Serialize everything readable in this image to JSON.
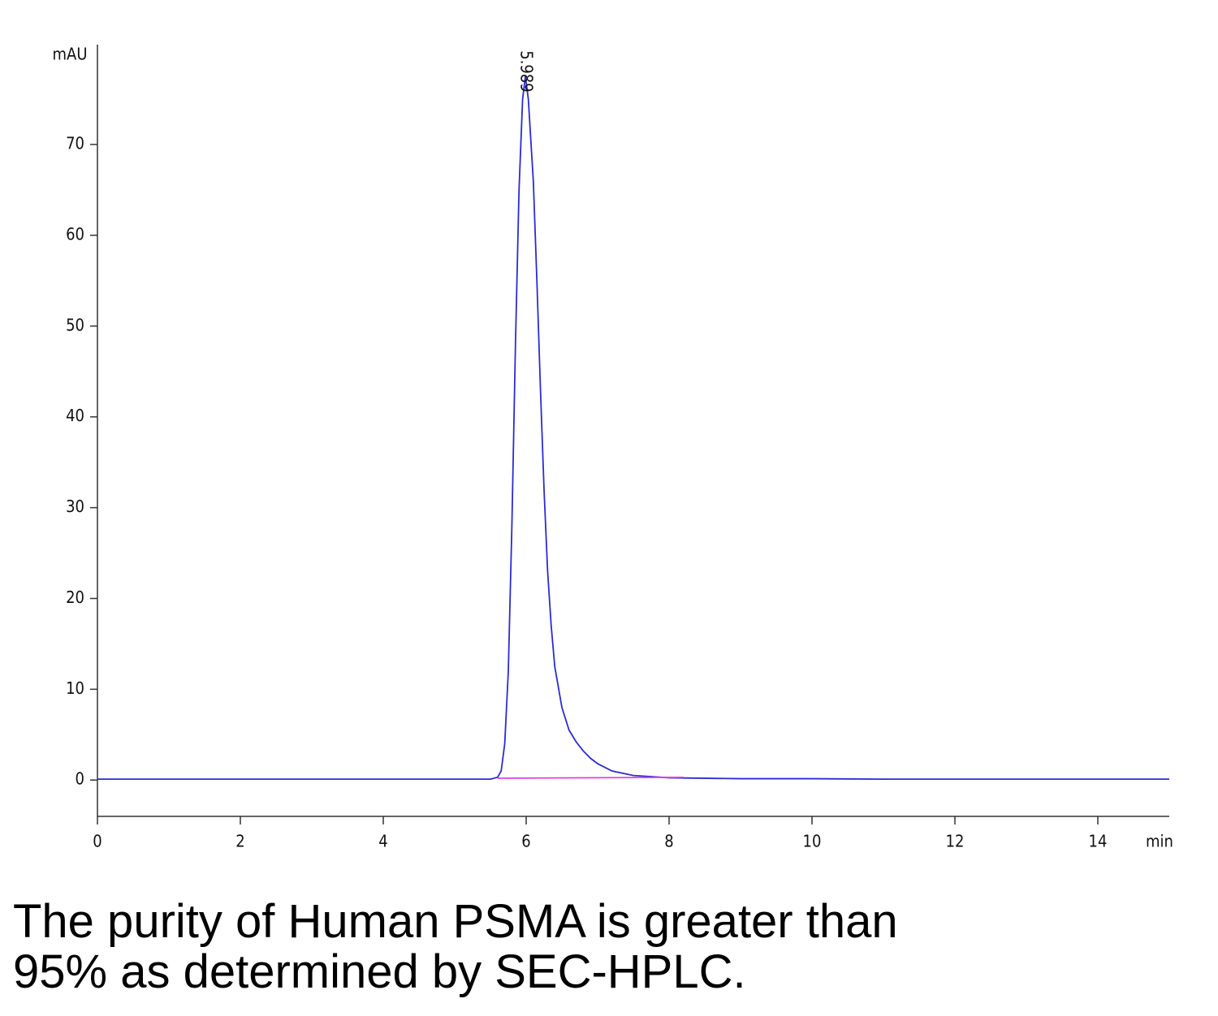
{
  "chart_data": {
    "type": "line",
    "ylabel": "mAU",
    "xlabel": "min",
    "xlim": [
      0,
      15
    ],
    "ylim": [
      -4,
      81
    ],
    "xticks": [
      0,
      2,
      4,
      6,
      8,
      10,
      12,
      14
    ],
    "yticks": [
      0,
      10,
      20,
      30,
      40,
      50,
      60,
      70
    ],
    "series": [
      {
        "color": "#2b2bd6",
        "x": [
          0,
          1,
          2,
          3,
          4,
          5,
          5.5,
          5.6,
          5.65,
          5.7,
          5.75,
          5.8,
          5.85,
          5.9,
          5.95,
          5.989,
          6.03,
          6.1,
          6.15,
          6.2,
          6.25,
          6.3,
          6.35,
          6.4,
          6.5,
          6.6,
          6.7,
          6.8,
          6.9,
          7.0,
          7.2,
          7.5,
          8,
          9,
          10,
          11,
          12,
          13,
          14,
          15
        ],
        "values": [
          0.1,
          0.1,
          0.1,
          0.1,
          0.1,
          0.1,
          0.1,
          0.3,
          1,
          4,
          12,
          28,
          48,
          65,
          75,
          77.5,
          75,
          66,
          55,
          43,
          32,
          23,
          17,
          12.5,
          8,
          5.5,
          4.2,
          3.2,
          2.4,
          1.8,
          1,
          0.5,
          0.25,
          0.15,
          0.15,
          0.1,
          0.1,
          0.1,
          0.1,
          0.1
        ]
      },
      {
        "color": "#e040e0",
        "x": [
          5.6,
          8.2
        ],
        "values": [
          0.2,
          0.3
        ]
      }
    ],
    "annotations": [
      {
        "x": 5.989,
        "label": "5.989"
      }
    ],
    "caption": "The purity of Human PSMA is greater than 95% as determined by SEC-HPLC."
  }
}
